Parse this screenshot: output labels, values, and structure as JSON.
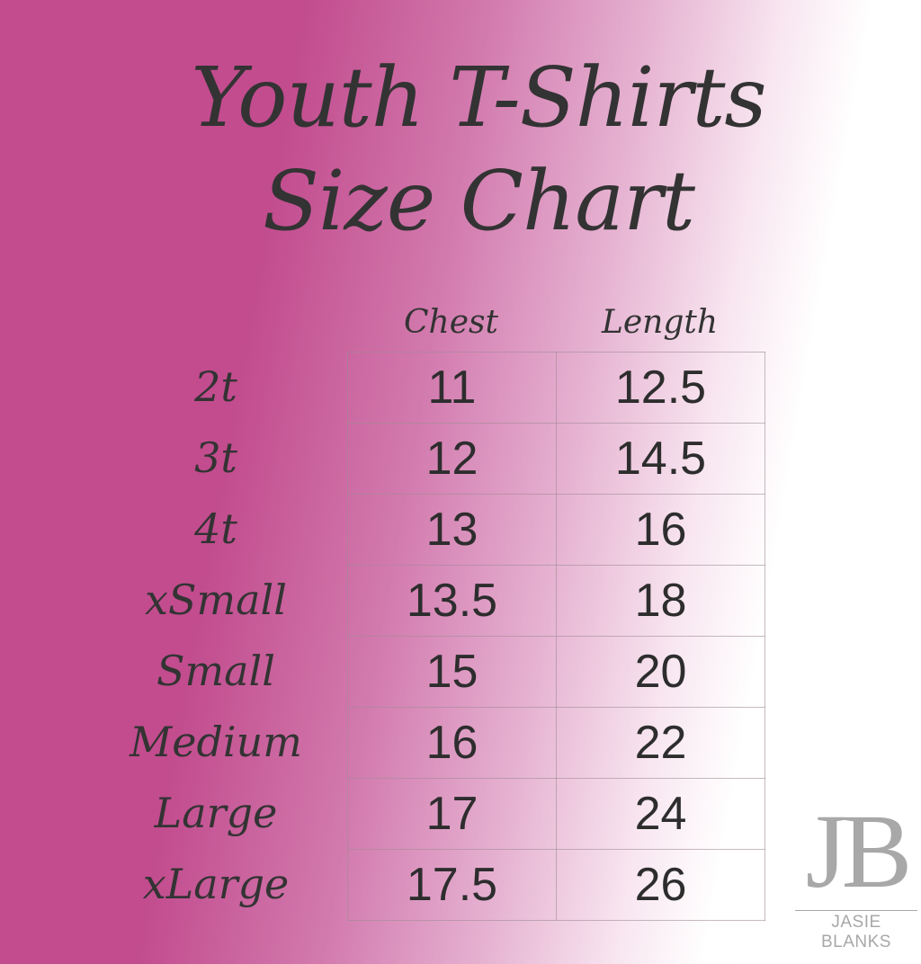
{
  "title": {
    "line1": "Youth T-Shirts",
    "line2": "Size Chart"
  },
  "table": {
    "columns": [
      "Chest",
      "Length"
    ],
    "rows": [
      {
        "size": "2t",
        "chest": "11",
        "length": "12.5"
      },
      {
        "size": "3t",
        "chest": "12",
        "length": "14.5"
      },
      {
        "size": "4t",
        "chest": "13",
        "length": "16"
      },
      {
        "size": "xSmall",
        "chest": "13.5",
        "length": "18"
      },
      {
        "size": "Small",
        "chest": "15",
        "length": "20"
      },
      {
        "size": "Medium",
        "chest": "16",
        "length": "22"
      },
      {
        "size": "Large",
        "chest": "17",
        "length": "24"
      },
      {
        "size": "xLarge",
        "chest": "17.5",
        "length": "26"
      }
    ]
  },
  "logo": {
    "mark": "JB",
    "name": "JASIE BLANKS"
  },
  "colors": {
    "background_left": "#c24c8e",
    "background_right": "#ffffff",
    "text": "#2d2d2d",
    "logo": "#a8a8a8"
  }
}
